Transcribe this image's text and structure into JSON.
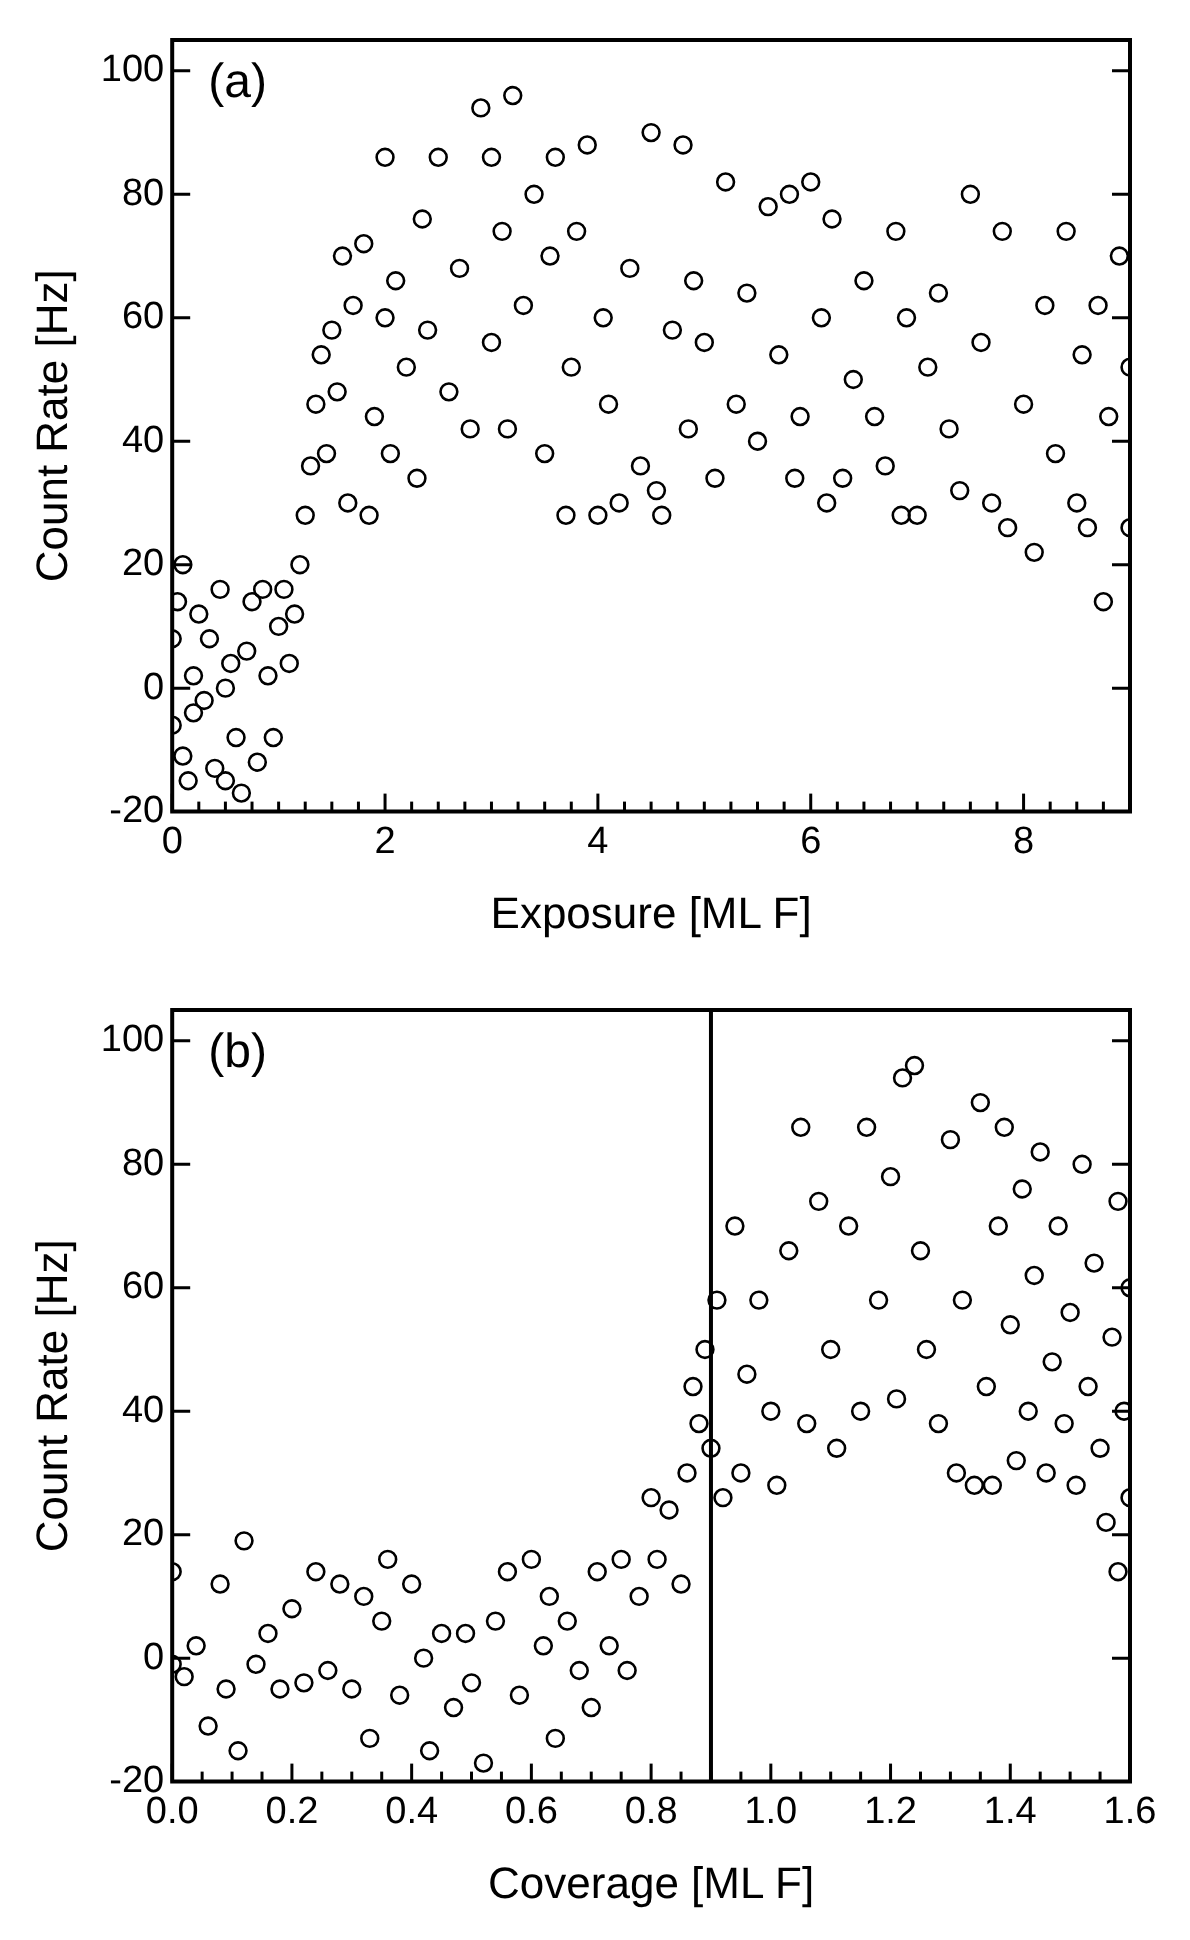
{
  "chart_data": [
    {
      "type": "scatter",
      "annotations": [
        "(a)"
      ],
      "xlabel": "Exposure [ML F]",
      "ylabel": "Count Rate [Hz]",
      "xlim": [
        0,
        9
      ],
      "ylim": [
        -20,
        105
      ],
      "xticks": [
        0,
        {
          "value": 0.25,
          "label": null
        },
        {
          "value": 0.5,
          "label": null
        },
        {
          "value": 0.75,
          "label": null
        },
        {
          "value": 1,
          "label": null
        },
        {
          "value": 1.25,
          "label": null
        },
        {
          "value": 1.5,
          "label": null
        },
        {
          "value": 1.75,
          "label": null
        },
        2,
        {
          "value": 2.25,
          "label": null
        },
        {
          "value": 2.5,
          "label": null
        },
        {
          "value": 2.75,
          "label": null
        },
        {
          "value": 3,
          "label": null
        },
        {
          "value": 3.25,
          "label": null
        },
        {
          "value": 3.5,
          "label": null
        },
        {
          "value": 3.75,
          "label": null
        },
        4,
        {
          "value": 4.25,
          "label": null
        },
        {
          "value": 4.5,
          "label": null
        },
        {
          "value": 4.75,
          "label": null
        },
        {
          "value": 5,
          "label": null
        },
        {
          "value": 5.25,
          "label": null
        },
        {
          "value": 5.5,
          "label": null
        },
        {
          "value": 5.75,
          "label": null
        },
        6,
        {
          "value": 6.25,
          "label": null
        },
        {
          "value": 6.5,
          "label": null
        },
        {
          "value": 6.75,
          "label": null
        },
        {
          "value": 7,
          "label": null
        },
        {
          "value": 7.25,
          "label": null
        },
        {
          "value": 7.5,
          "label": null
        },
        {
          "value": 7.75,
          "label": null
        },
        8,
        {
          "value": 8.25,
          "label": null
        },
        {
          "value": 8.5,
          "label": null
        },
        {
          "value": 8.75,
          "label": null
        }
      ],
      "yticks": [
        -20,
        0,
        20,
        40,
        60,
        80,
        100
      ],
      "marker": "circle",
      "series": [
        {
          "color": "#000000",
          "x": [
            0,
            0,
            0.05,
            0.1,
            0.1,
            0.15,
            0.2,
            0.2,
            0.25,
            0.3,
            0.35,
            0.4,
            0.45,
            0.5,
            0.5,
            0.55,
            0.6,
            0.65,
            0.7,
            0.75,
            0.8,
            0.85,
            0.9,
            0.95,
            1.0,
            1.05,
            1.1,
            1.15,
            1.2,
            1.25,
            1.3,
            1.35,
            1.4,
            1.45,
            1.5,
            1.55,
            1.6,
            1.65,
            1.7,
            1.8,
            1.85,
            1.9,
            2.0,
            2.0,
            2.05,
            2.1,
            2.2,
            2.3,
            2.35,
            2.4,
            2.5,
            2.6,
            2.7,
            2.8,
            2.9,
            3.0,
            3.0,
            3.1,
            3.15,
            3.2,
            3.3,
            3.4,
            3.5,
            3.55,
            3.6,
            3.7,
            3.75,
            3.8,
            3.9,
            4.0,
            4.05,
            4.1,
            4.2,
            4.3,
            4.4,
            4.5,
            4.55,
            4.6,
            4.7,
            4.8,
            4.85,
            4.9,
            5.0,
            5.1,
            5.2,
            5.3,
            5.4,
            5.5,
            5.6,
            5.7,
            5.8,
            5.85,
            5.9,
            6.0,
            6.1,
            6.15,
            6.2,
            6.3,
            6.4,
            6.5,
            6.6,
            6.7,
            6.8,
            6.85,
            6.9,
            7.0,
            7.1,
            7.2,
            7.3,
            7.4,
            7.5,
            7.6,
            7.7,
            7.8,
            7.85,
            8.0,
            8.1,
            8.2,
            8.3,
            8.4,
            8.5,
            8.55,
            8.6,
            8.7,
            8.75,
            8.8,
            8.9,
            9.0,
            9.0
          ],
          "values": [
            8,
            -6,
            14,
            -11,
            20,
            -15,
            2,
            -4,
            12,
            -2,
            8,
            -13,
            16,
            -15,
            0,
            4,
            -8,
            -17,
            6,
            14,
            -12,
            16,
            2,
            -8,
            10,
            16,
            4,
            12,
            20,
            28,
            36,
            46,
            54,
            38,
            58,
            48,
            70,
            30,
            62,
            72,
            28,
            44,
            86,
            60,
            38,
            66,
            52,
            34,
            76,
            58,
            86,
            48,
            68,
            42,
            94,
            86,
            56,
            74,
            42,
            96,
            62,
            80,
            38,
            70,
            86,
            28,
            52,
            74,
            88,
            28,
            60,
            46,
            30,
            68,
            36,
            90,
            32,
            28,
            58,
            88,
            42,
            66,
            56,
            34,
            82,
            46,
            64,
            40,
            78,
            54,
            80,
            34,
            44,
            82,
            60,
            30,
            76,
            34,
            50,
            66,
            44,
            36,
            74,
            28,
            60,
            28,
            52,
            64,
            42,
            32,
            80,
            56,
            30,
            74,
            26,
            46,
            22,
            62,
            38,
            74,
            30,
            54,
            26,
            62,
            14,
            44,
            70,
            26,
            52
          ]
        }
      ]
    },
    {
      "type": "scatter",
      "annotations": [
        "(b)"
      ],
      "xlabel": "Coverage [ML F]",
      "ylabel": "Count Rate [Hz]",
      "xlim": [
        0,
        1.6
      ],
      "ylim": [
        -20,
        105
      ],
      "xticks": [
        {
          "value": 0,
          "label": "0.0"
        },
        {
          "value": 0.05,
          "label": null
        },
        {
          "value": 0.1,
          "label": null
        },
        {
          "value": 0.15,
          "label": null
        },
        {
          "value": 0.2,
          "label": "0.2"
        },
        {
          "value": 0.25,
          "label": null
        },
        {
          "value": 0.3,
          "label": null
        },
        {
          "value": 0.35,
          "label": null
        },
        {
          "value": 0.4,
          "label": "0.4"
        },
        {
          "value": 0.45,
          "label": null
        },
        {
          "value": 0.5,
          "label": null
        },
        {
          "value": 0.55,
          "label": null
        },
        {
          "value": 0.6,
          "label": "0.6"
        },
        {
          "value": 0.65,
          "label": null
        },
        {
          "value": 0.7,
          "label": null
        },
        {
          "value": 0.75,
          "label": null
        },
        {
          "value": 0.8,
          "label": "0.8"
        },
        {
          "value": 0.85,
          "label": null
        },
        {
          "value": 0.9,
          "label": null
        },
        {
          "value": 0.95,
          "label": null
        },
        {
          "value": 1,
          "label": "1.0"
        },
        {
          "value": 1.05,
          "label": null
        },
        {
          "value": 1.1,
          "label": null
        },
        {
          "value": 1.15,
          "label": null
        },
        {
          "value": 1.2,
          "label": "1.2"
        },
        {
          "value": 1.25,
          "label": null
        },
        {
          "value": 1.3,
          "label": null
        },
        {
          "value": 1.35,
          "label": null
        },
        {
          "value": 1.4,
          "label": "1.4"
        },
        {
          "value": 1.45,
          "label": null
        },
        {
          "value": 1.5,
          "label": null
        },
        {
          "value": 1.55,
          "label": null
        },
        {
          "value": 1.6,
          "label": "1.6"
        }
      ],
      "yticks": [
        -20,
        0,
        20,
        40,
        60,
        80,
        100
      ],
      "marker": "circle",
      "ref_lines": [
        {
          "axis": "x",
          "value": 0.9,
          "color": "#000000"
        }
      ],
      "series": [
        {
          "color": "#000000",
          "x": [
            0,
            0,
            0.02,
            0.04,
            0.06,
            0.08,
            0.09,
            0.11,
            0.12,
            0.14,
            0.16,
            0.18,
            0.2,
            0.22,
            0.24,
            0.26,
            0.28,
            0.3,
            0.32,
            0.33,
            0.35,
            0.36,
            0.38,
            0.4,
            0.42,
            0.43,
            0.45,
            0.47,
            0.49,
            0.5,
            0.52,
            0.54,
            0.56,
            0.58,
            0.6,
            0.62,
            0.63,
            0.64,
            0.66,
            0.68,
            0.7,
            0.71,
            0.73,
            0.75,
            0.76,
            0.78,
            0.8,
            0.81,
            0.83,
            0.85,
            0.86,
            0.87,
            0.88,
            0.89,
            0.9,
            0.91,
            0.92,
            0.94,
            0.95,
            0.96,
            0.98,
            1.0,
            1.01,
            1.03,
            1.05,
            1.06,
            1.08,
            1.1,
            1.11,
            1.13,
            1.15,
            1.16,
            1.18,
            1.2,
            1.21,
            1.22,
            1.24,
            1.25,
            1.26,
            1.28,
            1.3,
            1.31,
            1.32,
            1.34,
            1.35,
            1.36,
            1.37,
            1.38,
            1.39,
            1.4,
            1.41,
            1.42,
            1.43,
            1.44,
            1.45,
            1.46,
            1.47,
            1.48,
            1.49,
            1.5,
            1.51,
            1.52,
            1.53,
            1.54,
            1.55,
            1.56,
            1.57,
            1.58,
            1.58,
            1.59,
            1.6,
            1.6
          ],
          "values": [
            14,
            -1,
            -3,
            2,
            -11,
            12,
            -5,
            -15,
            19,
            -1,
            4,
            -5,
            8,
            -4,
            14,
            -2,
            12,
            -5,
            10,
            -13,
            6,
            16,
            -6,
            12,
            0,
            -15,
            4,
            -8,
            4,
            -4,
            -17,
            6,
            14,
            -6,
            16,
            2,
            10,
            -13,
            6,
            -2,
            -8,
            14,
            2,
            16,
            -2,
            10,
            26,
            16,
            24,
            12,
            30,
            44,
            38,
            50,
            34,
            58,
            26,
            70,
            30,
            46,
            58,
            40,
            28,
            66,
            86,
            38,
            74,
            50,
            34,
            70,
            40,
            86,
            58,
            78,
            42,
            94,
            96,
            66,
            50,
            38,
            84,
            30,
            58,
            28,
            90,
            44,
            28,
            70,
            86,
            54,
            32,
            76,
            40,
            62,
            82,
            30,
            48,
            70,
            38,
            56,
            28,
            80,
            44,
            64,
            34,
            22,
            52,
            74,
            14,
            40,
            60,
            26
          ]
        }
      ]
    }
  ]
}
